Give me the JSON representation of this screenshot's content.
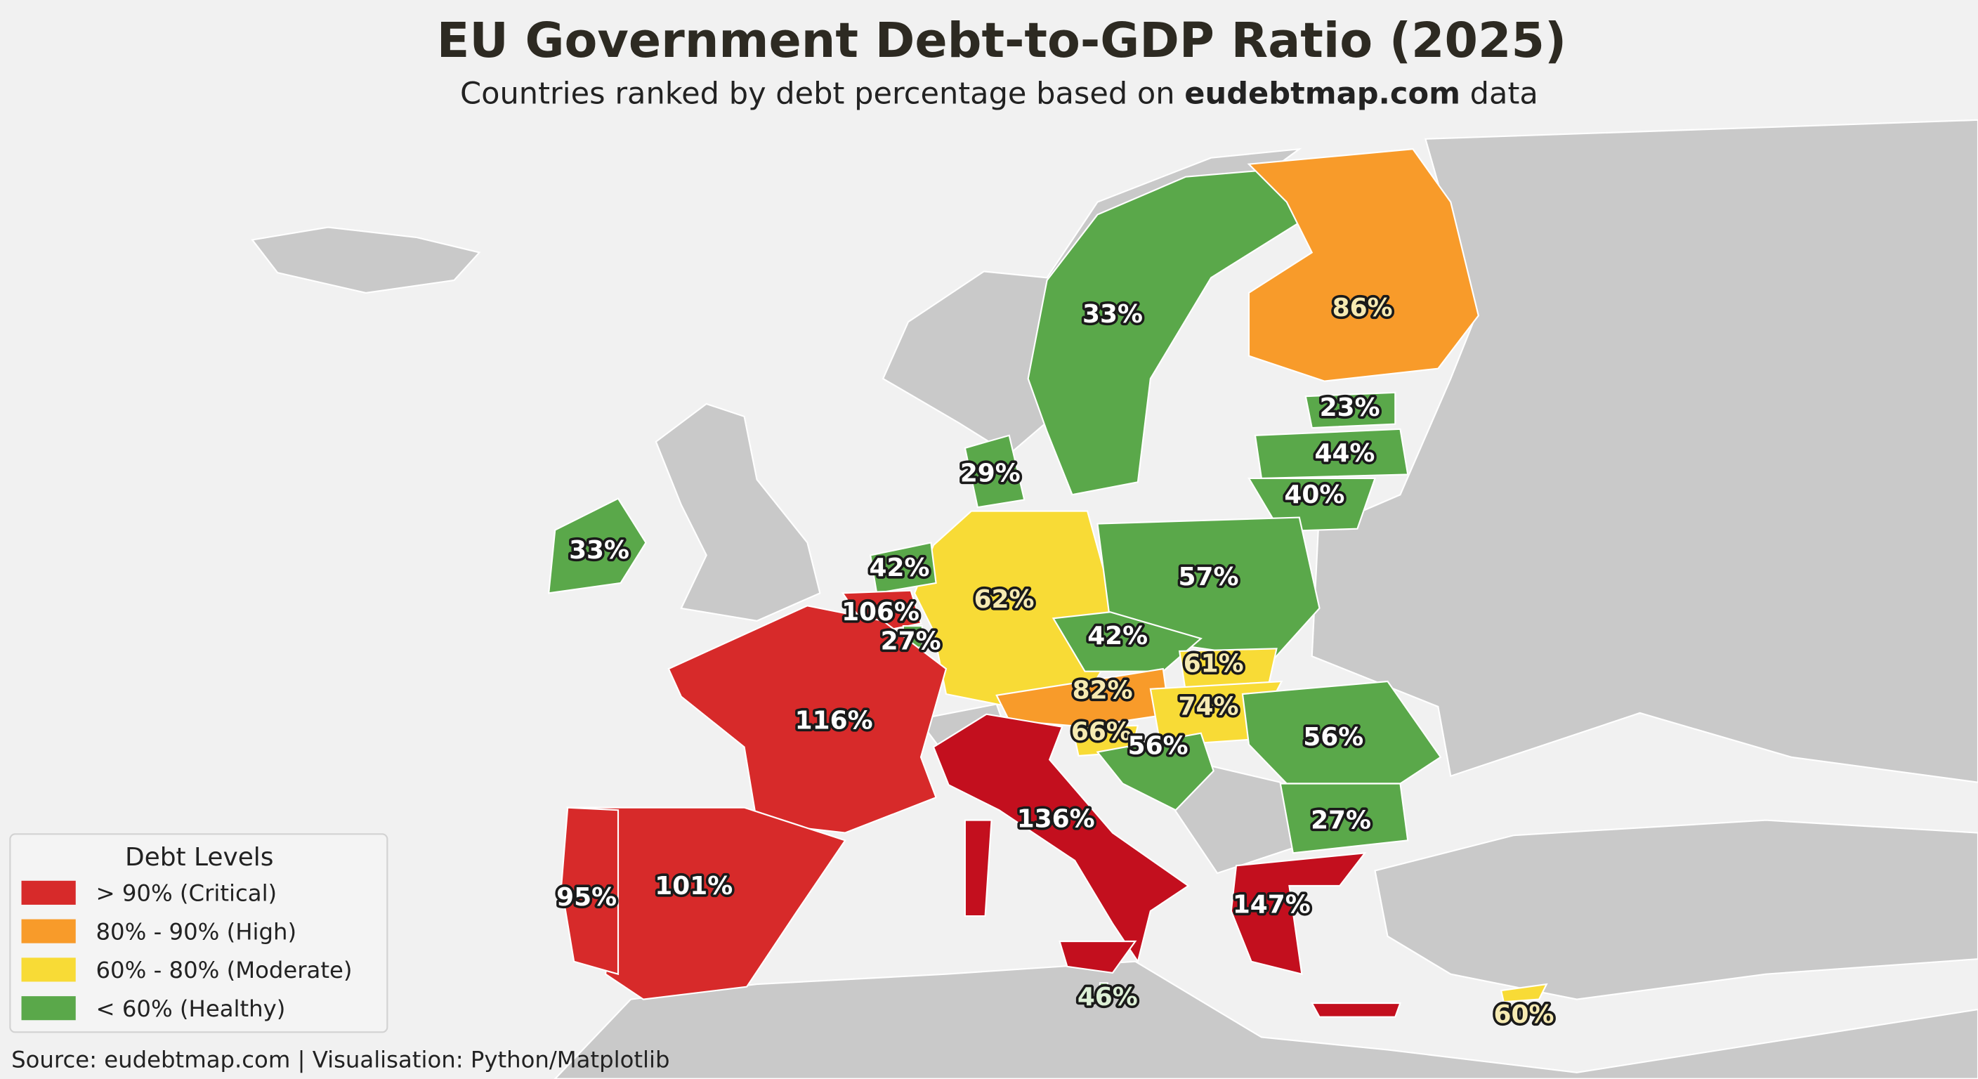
{
  "title": "EU Government Debt-to-GDP Ratio (2025)",
  "subtitle": {
    "prefix": "Countries ranked by debt percentage based on ",
    "bold": "eudebtmap.com",
    "suffix": " data"
  },
  "legend": {
    "title": "Debt Levels",
    "placement": "bottom-left",
    "items": [
      {
        "level": "critical",
        "label": "> 90% (Critical)",
        "color": "#D72A2A"
      },
      {
        "level": "high",
        "label": "80% - 90% (High)",
        "color": "#F89B2A"
      },
      {
        "level": "moderate",
        "label": "60% - 80% (Moderate)",
        "color": "#F8DB36"
      },
      {
        "level": "healthy",
        "label": "< 60% (Healthy)",
        "color": "#5AA84A"
      }
    ]
  },
  "non_eu_color": "#C9C9C9",
  "countries": {
    "finland": {
      "value": "86%",
      "level": "high"
    },
    "sweden": {
      "value": "33%",
      "level": "healthy"
    },
    "estonia": {
      "value": "23%",
      "level": "healthy"
    },
    "latvia": {
      "value": "44%",
      "level": "healthy"
    },
    "lithuania": {
      "value": "40%",
      "level": "healthy"
    },
    "denmark": {
      "value": "29%",
      "level": "healthy"
    },
    "ireland": {
      "value": "33%",
      "level": "healthy"
    },
    "netherlands": {
      "value": "42%",
      "level": "healthy"
    },
    "belgium": {
      "value": "106%",
      "level": "critical"
    },
    "luxembourg": {
      "value": "27%",
      "level": "healthy"
    },
    "germany": {
      "value": "62%",
      "level": "moderate"
    },
    "poland": {
      "value": "57%",
      "level": "healthy"
    },
    "czechia": {
      "value": "42%",
      "level": "healthy"
    },
    "slovakia": {
      "value": "61%",
      "level": "moderate"
    },
    "austria": {
      "value": "82%",
      "level": "high"
    },
    "hungary": {
      "value": "74%",
      "level": "moderate"
    },
    "slovenia": {
      "value": "66%",
      "level": "moderate"
    },
    "croatia": {
      "value": "56%",
      "level": "healthy"
    },
    "romania": {
      "value": "56%",
      "level": "healthy"
    },
    "bulgaria": {
      "value": "27%",
      "level": "healthy"
    },
    "france": {
      "value": "116%",
      "level": "critical"
    },
    "italy": {
      "value": "136%",
      "level": "critical"
    },
    "greece": {
      "value": "147%",
      "level": "critical"
    },
    "spain": {
      "value": "101%",
      "level": "critical"
    },
    "portugal": {
      "value": "95%",
      "level": "critical"
    },
    "malta": {
      "value": "46%",
      "level": "healthy"
    },
    "cyprus": {
      "value": "60%",
      "level": "moderate"
    }
  },
  "footer": "Source: eudebtmap.com | Visualisation: Python/Matplotlib"
}
